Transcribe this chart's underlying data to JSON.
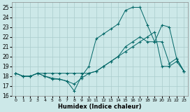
{
  "xlabel": "Humidex (Indice chaleur)",
  "xlim": [
    -0.5,
    23.5
  ],
  "ylim": [
    16,
    25.5
  ],
  "yticks": [
    16,
    17,
    18,
    19,
    20,
    21,
    22,
    23,
    24,
    25
  ],
  "xticks": [
    0,
    1,
    2,
    3,
    4,
    5,
    6,
    7,
    8,
    9,
    10,
    11,
    12,
    13,
    14,
    15,
    16,
    17,
    18,
    19,
    20,
    21,
    22,
    23
  ],
  "bg_color": "#cce8e8",
  "grid_color": "#aacccc",
  "line_color": "#006666",
  "series1_x": [
    0,
    1,
    2,
    3,
    4,
    5,
    6,
    7,
    8,
    9,
    10,
    11,
    12,
    13,
    14,
    15,
    16,
    17,
    18,
    19,
    20,
    21,
    22,
    23
  ],
  "series1_y": [
    18.3,
    18.0,
    18.0,
    18.3,
    18.3,
    18.3,
    18.3,
    18.3,
    18.3,
    18.3,
    18.3,
    18.5,
    19.0,
    19.5,
    20.0,
    20.5,
    21.0,
    21.5,
    22.0,
    22.5,
    19.0,
    19.0,
    19.5,
    18.5
  ],
  "series2_x": [
    0,
    1,
    2,
    3,
    4,
    5,
    6,
    7,
    8,
    9,
    10,
    11,
    12,
    13,
    14,
    15,
    16,
    17,
    18,
    19,
    20,
    21,
    22,
    23
  ],
  "series2_y": [
    18.3,
    18.0,
    18.0,
    18.3,
    18.0,
    17.7,
    17.7,
    17.5,
    16.5,
    18.0,
    19.0,
    21.8,
    22.3,
    22.8,
    23.3,
    24.7,
    25.0,
    25.0,
    23.2,
    21.5,
    23.2,
    23.0,
    19.8,
    18.5
  ],
  "series3_x": [
    0,
    1,
    2,
    3,
    4,
    5,
    6,
    7,
    8,
    9,
    10,
    11,
    12,
    13,
    14,
    15,
    16,
    17,
    18,
    19,
    20,
    21,
    22,
    23
  ],
  "series3_y": [
    18.3,
    18.0,
    18.0,
    18.3,
    18.0,
    17.8,
    17.7,
    17.5,
    17.2,
    17.8,
    18.3,
    18.5,
    19.0,
    19.5,
    20.0,
    21.0,
    21.5,
    22.0,
    21.5,
    21.5,
    21.5,
    19.3,
    19.8,
    18.5
  ]
}
